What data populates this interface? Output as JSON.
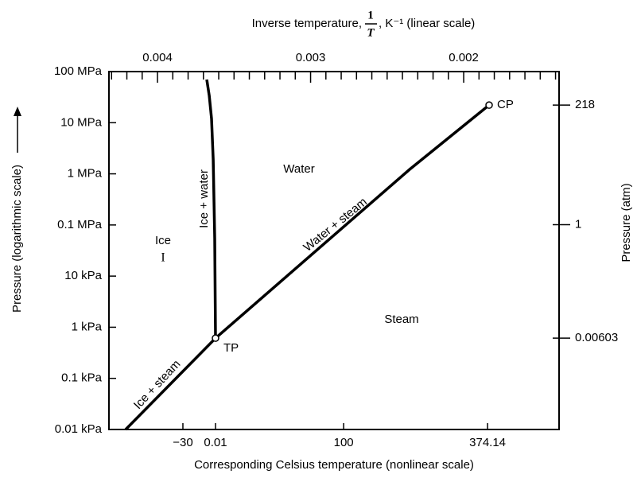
{
  "chart_data": {
    "type": "line",
    "top_axis_label": {
      "before": "Inverse temperature,",
      "numerator": "1",
      "denominator": "T",
      "after": ", K⁻¹ (linear scale)"
    },
    "xlabel": "Corresponding Celsius temperature (nonlinear scale)",
    "ylabel": "Pressure (logarithmic scale)",
    "y2label": "Pressure (atm)",
    "xlim": [
      0.004317,
      0.001377
    ],
    "top_xticks": [
      0.004,
      0.003,
      0.002
    ],
    "top_xticks_minor": [
      0.0043,
      0.0042,
      0.0041,
      0.0039,
      0.0038,
      0.0037,
      0.0036,
      0.0035,
      0.0034,
      0.0033,
      0.0032,
      0.0031,
      0.0029,
      0.0028,
      0.0027,
      0.0026,
      0.0025,
      0.0024,
      0.0023,
      0.0022,
      0.0021,
      0.0019,
      0.0018,
      0.0017,
      0.0016,
      0.0015,
      0.0014
    ],
    "xticks": [
      {
        "value": 0.003834,
        "label": "−30"
      },
      {
        "value": 0.003621,
        "label": "0.01"
      },
      {
        "value": 0.002784,
        "label": "100"
      },
      {
        "value": 0.001844,
        "label": "374.14"
      }
    ],
    "log_y": true,
    "ylim": [
      10,
      100000000
    ],
    "yticks": [
      {
        "value": 100000000,
        "label": "100 MPa"
      },
      {
        "value": 10000000,
        "label": "10 MPa"
      },
      {
        "value": 1000000,
        "label": "1 MPa"
      },
      {
        "value": 100000,
        "label": "0.1 MPa"
      },
      {
        "value": 10000,
        "label": "10 kPa"
      },
      {
        "value": 1000,
        "label": "1 kPa"
      },
      {
        "value": 100,
        "label": "0.1 kPa"
      },
      {
        "value": 10,
        "label": "0.01 kPa"
      }
    ],
    "y2lim": [
      9.869e-05,
      986.9
    ],
    "y2ticks": [
      218,
      1,
      0.00603
    ],
    "color": "#000000",
    "series": [
      {
        "x": [
          0.003621,
          0.003626,
          0.003636,
          0.003647,
          0.003662,
          0.003678
        ],
        "values": [
          611,
          54000,
          1900000,
          12000000,
          34000000,
          70000000
        ]
      },
      {
        "x": [
          0.004208,
          0.003621
        ],
        "values": [
          10,
          611
        ]
      },
      {
        "x": [
          0.003621,
          0.002353,
          0.001834
        ],
        "values": [
          611,
          1220000,
          22100000
        ]
      }
    ],
    "points": [
      {
        "label": "TP",
        "x": 0.003621,
        "y": 611
      },
      {
        "label": "CP",
        "x": 0.001834,
        "y": 22100000
      }
    ],
    "region_labels": [
      "Water",
      "Ice",
      "I",
      "Steam"
    ],
    "line_labels": [
      "Ice + water",
      "Water + steam",
      "Ice + steam"
    ]
  }
}
